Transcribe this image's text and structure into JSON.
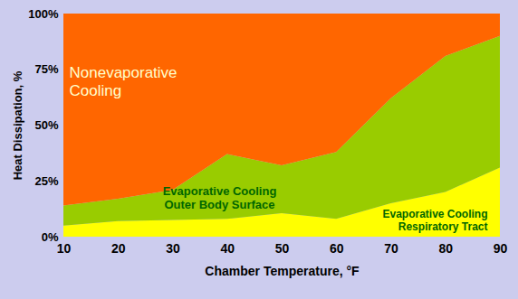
{
  "chart_data": {
    "type": "area",
    "stacked": true,
    "x_label": "Chamber Temperature, °F",
    "y_label": "Heat Dissipation, %",
    "x": [
      10,
      20,
      30,
      40,
      50,
      60,
      70,
      80,
      90
    ],
    "xlim": [
      10,
      90
    ],
    "xticks": [
      10,
      20,
      30,
      40,
      50,
      60,
      70,
      80,
      90
    ],
    "ylim": [
      0,
      100
    ],
    "yticks": [
      {
        "value": 0,
        "label": "0%"
      },
      {
        "value": 25,
        "label": "25%"
      },
      {
        "value": 50,
        "label": "50%"
      },
      {
        "value": 75,
        "label": "75%"
      },
      {
        "value": 100,
        "label": "100%"
      }
    ],
    "series": [
      {
        "name": "Evaporative Cooling Respiratory Tract",
        "color": "#ffff00",
        "values": [
          5,
          7,
          7.5,
          8,
          10.5,
          8,
          15,
          20,
          31
        ]
      },
      {
        "name": "Evaporative Cooling Outer Body Surface",
        "color": "#99cc00",
        "values": [
          9,
          10,
          13.5,
          29,
          21.5,
          30,
          47,
          61,
          59
        ]
      },
      {
        "name": "Nonevaporative Cooling",
        "color": "#ff6600",
        "values": [
          86,
          83,
          79,
          63,
          68,
          62,
          38,
          19,
          10
        ]
      }
    ]
  }
}
